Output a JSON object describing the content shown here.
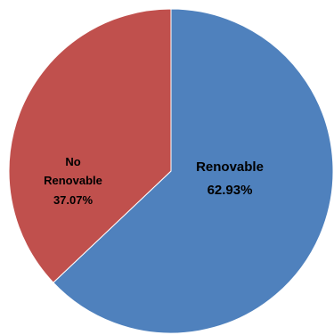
{
  "chart_data": {
    "type": "pie",
    "slices": [
      {
        "label": "Renovable",
        "value": 62.93,
        "value_label": "62.93%",
        "color": "#4f81bd"
      },
      {
        "label": "No Renovable",
        "value": 37.07,
        "value_label": "37.07%",
        "color": "#c0504d"
      }
    ],
    "start_angle_deg": 0,
    "direction": "clockwise",
    "legend": "none"
  },
  "labels": {
    "renovable_name": "Renovable",
    "renovable_pct": "62.93%",
    "no_renovable_line1": "No",
    "no_renovable_line2": "Renovable",
    "no_renovable_pct": "37.07%"
  }
}
